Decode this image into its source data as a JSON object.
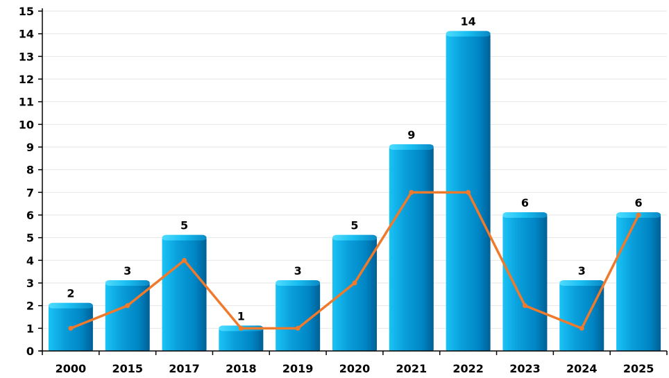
{
  "chart_data": {
    "type": "bar",
    "categories": [
      "2000",
      "2015",
      "2017",
      "2018",
      "2019",
      "2020",
      "2021",
      "2022",
      "2023",
      "2024",
      "2025"
    ],
    "series": [
      {
        "type": "bar",
        "values": [
          2,
          3,
          5,
          1,
          3,
          5,
          9,
          14,
          6,
          3,
          6
        ],
        "color": "#0089cc",
        "data_labels": true
      },
      {
        "type": "line",
        "values": [
          1,
          2,
          4,
          1,
          1,
          3,
          7,
          7,
          2,
          1,
          6
        ],
        "color": "#f07a2c",
        "markers": true
      }
    ],
    "ylim": [
      0,
      15
    ],
    "yticks": [
      0,
      1,
      2,
      3,
      4,
      5,
      6,
      7,
      8,
      9,
      10,
      11,
      12,
      13,
      14,
      15
    ],
    "grid": true,
    "legend": "none",
    "title": "",
    "xlabel": "",
    "ylabel": ""
  }
}
